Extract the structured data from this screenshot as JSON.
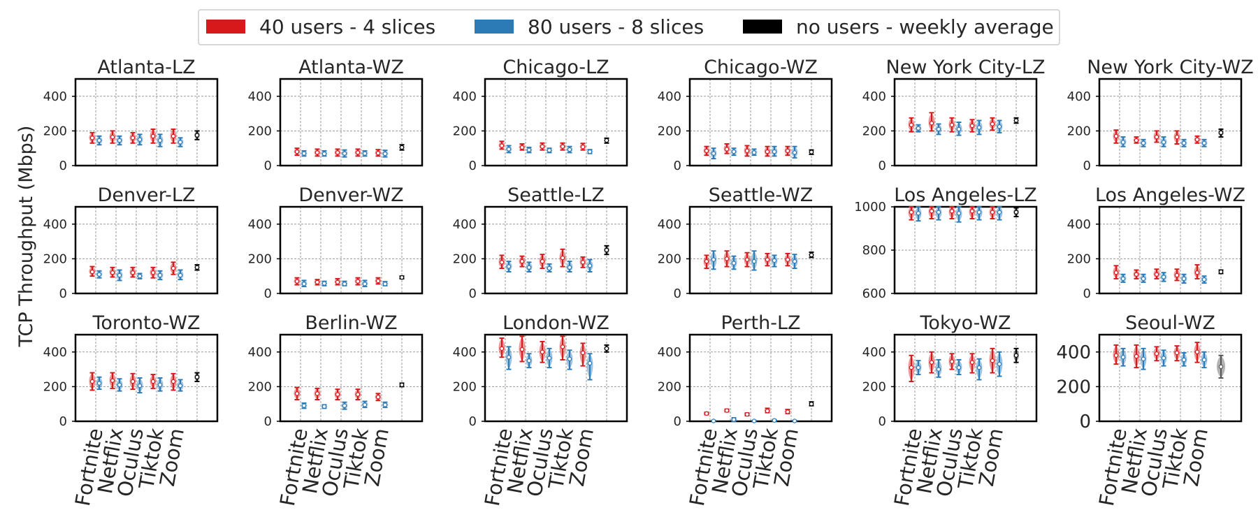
{
  "legend": [
    {
      "label": "40 users - 4 slices",
      "color": "#d7191c"
    },
    {
      "label": "80 users - 8 slices",
      "color": "#2c7bb6"
    },
    {
      "label": "no users - weekly average",
      "color": "#000000"
    }
  ],
  "ylabel": "TCP Throughput (Mbps)",
  "categories": [
    "Fortnite",
    "Netflix",
    "Oculus",
    "Tiktok",
    "Zoom"
  ],
  "chart_data": {
    "type": "violin",
    "ylabel": "TCP Throughput (Mbps)",
    "categories": [
      "Fortnite",
      "Netflix",
      "Oculus",
      "Tiktok",
      "Zoom"
    ],
    "series_names": [
      "40 users - 4 slices",
      "80 users - 8 slices",
      "no users - weekly average"
    ],
    "grid": true,
    "legend_position": "top",
    "panels": [
      {
        "title": "Atlanta-LZ",
        "ylim": [
          0,
          500
        ],
        "yticks": [
          0,
          200,
          400
        ],
        "s40": [
          [
            160,
            130,
            190
          ],
          [
            165,
            130,
            200
          ],
          [
            160,
            130,
            190
          ],
          [
            170,
            130,
            210
          ],
          [
            170,
            130,
            210
          ]
        ],
        "s80": [
          [
            145,
            120,
            170
          ],
          [
            145,
            120,
            170
          ],
          [
            150,
            120,
            180
          ],
          [
            145,
            110,
            180
          ],
          [
            135,
            110,
            160
          ]
        ],
        "avg": [
          175,
          150,
          200
        ]
      },
      {
        "title": "Atlanta-WZ",
        "ylim": [
          0,
          500
        ],
        "yticks": [
          0,
          200,
          400
        ],
        "s40": [
          [
            80,
            60,
            100
          ],
          [
            75,
            55,
            95
          ],
          [
            75,
            55,
            95
          ],
          [
            75,
            55,
            95
          ],
          [
            72,
            55,
            92
          ]
        ],
        "s80": [
          [
            70,
            55,
            85
          ],
          [
            68,
            55,
            85
          ],
          [
            70,
            50,
            90
          ],
          [
            70,
            55,
            85
          ],
          [
            68,
            50,
            88
          ]
        ],
        "avg": [
          105,
          90,
          120
        ]
      },
      {
        "title": "Chicago-LZ",
        "ylim": [
          0,
          500
        ],
        "yticks": [
          0,
          200,
          400
        ],
        "s40": [
          [
            115,
            95,
            140
          ],
          [
            105,
            90,
            125
          ],
          [
            110,
            90,
            130
          ],
          [
            110,
            90,
            130
          ],
          [
            108,
            90,
            128
          ]
        ],
        "s80": [
          [
            95,
            75,
            115
          ],
          [
            90,
            75,
            105
          ],
          [
            88,
            75,
            100
          ],
          [
            92,
            75,
            110
          ],
          [
            80,
            70,
            92
          ]
        ],
        "avg": [
          145,
          130,
          158
        ]
      },
      {
        "title": "Chicago-WZ",
        "ylim": [
          0,
          500
        ],
        "yticks": [
          0,
          200,
          400
        ],
        "s40": [
          [
            85,
            60,
            110
          ],
          [
            95,
            70,
            125
          ],
          [
            85,
            55,
            115
          ],
          [
            80,
            55,
            110
          ],
          [
            85,
            60,
            110
          ]
        ],
        "s80": [
          [
            70,
            40,
            100
          ],
          [
            80,
            60,
            100
          ],
          [
            75,
            60,
            95
          ],
          [
            80,
            55,
            110
          ],
          [
            75,
            45,
            110
          ]
        ],
        "avg": [
          78,
          65,
          90
        ]
      },
      {
        "title": "New York City-LZ",
        "ylim": [
          0,
          500
        ],
        "yticks": [
          0,
          200,
          400
        ],
        "s40": [
          [
            235,
            195,
            275
          ],
          [
            245,
            200,
            305
          ],
          [
            235,
            195,
            275
          ],
          [
            230,
            195,
            265
          ],
          [
            240,
            205,
            275
          ]
        ],
        "s80": [
          [
            215,
            195,
            235
          ],
          [
            210,
            180,
            240
          ],
          [
            210,
            175,
            250
          ],
          [
            220,
            180,
            260
          ],
          [
            225,
            190,
            260
          ]
        ],
        "avg": [
          260,
          245,
          275
        ]
      },
      {
        "title": "New York City-WZ",
        "ylim": [
          0,
          500
        ],
        "yticks": [
          0,
          200,
          400
        ],
        "s40": [
          [
            170,
            130,
            205
          ],
          [
            145,
            130,
            165
          ],
          [
            165,
            135,
            200
          ],
          [
            165,
            125,
            200
          ],
          [
            150,
            130,
            170
          ]
        ],
        "s80": [
          [
            135,
            110,
            165
          ],
          [
            130,
            110,
            150
          ],
          [
            135,
            110,
            165
          ],
          [
            130,
            110,
            150
          ],
          [
            130,
            110,
            150
          ]
        ],
        "avg": [
          190,
          165,
          210
        ]
      },
      {
        "title": "Denver-LZ",
        "ylim": [
          0,
          500
        ],
        "yticks": [
          0,
          200,
          400
        ],
        "s40": [
          [
            125,
            100,
            155
          ],
          [
            120,
            95,
            150
          ],
          [
            120,
            95,
            150
          ],
          [
            120,
            90,
            150
          ],
          [
            145,
            110,
            180
          ]
        ],
        "s80": [
          [
            110,
            90,
            130
          ],
          [
            105,
            75,
            135
          ],
          [
            100,
            85,
            115
          ],
          [
            105,
            80,
            130
          ],
          [
            105,
            80,
            135
          ]
        ],
        "avg": [
          150,
          135,
          165
        ]
      },
      {
        "title": "Denver-WZ",
        "ylim": [
          0,
          500
        ],
        "yticks": [
          0,
          200,
          400
        ],
        "s40": [
          [
            70,
            50,
            90
          ],
          [
            65,
            50,
            80
          ],
          [
            65,
            50,
            85
          ],
          [
            70,
            50,
            90
          ],
          [
            72,
            55,
            90
          ]
        ],
        "s80": [
          [
            55,
            40,
            75
          ],
          [
            58,
            45,
            70
          ],
          [
            55,
            45,
            70
          ],
          [
            55,
            40,
            75
          ],
          [
            55,
            45,
            68
          ]
        ],
        "avg": [
          92,
          85,
          100
        ]
      },
      {
        "title": "Seattle-LZ",
        "ylim": [
          0,
          500
        ],
        "yticks": [
          0,
          200,
          400
        ],
        "s40": [
          [
            180,
            145,
            220
          ],
          [
            185,
            155,
            215
          ],
          [
            185,
            145,
            225
          ],
          [
            205,
            155,
            255
          ],
          [
            180,
            150,
            210
          ]
        ],
        "s80": [
          [
            155,
            125,
            185
          ],
          [
            150,
            125,
            180
          ],
          [
            145,
            125,
            170
          ],
          [
            150,
            125,
            185
          ],
          [
            160,
            125,
            195
          ]
        ],
        "avg": [
          250,
          225,
          275
        ]
      },
      {
        "title": "Seattle-WZ",
        "ylim": [
          0,
          500
        ],
        "yticks": [
          0,
          200,
          400
        ],
        "s40": [
          [
            185,
            145,
            220
          ],
          [
            200,
            155,
            245
          ],
          [
            195,
            155,
            235
          ],
          [
            195,
            160,
            230
          ],
          [
            195,
            160,
            230
          ]
        ],
        "s80": [
          [
            195,
            140,
            245
          ],
          [
            175,
            140,
            215
          ],
          [
            185,
            135,
            245
          ],
          [
            190,
            155,
            220
          ],
          [
            185,
            145,
            225
          ]
        ],
        "avg": [
          222,
          208,
          238
        ]
      },
      {
        "title": "Los Angeles-LZ",
        "ylim": [
          600,
          1000
        ],
        "yticks": [
          600,
          800,
          1000
        ],
        "s40": [
          [
            975,
            940,
            1000
          ],
          [
            980,
            945,
            1000
          ],
          [
            980,
            945,
            1000
          ],
          [
            980,
            945,
            1000
          ],
          [
            975,
            945,
            1000
          ]
        ],
        "s80": [
          [
            970,
            935,
            1000
          ],
          [
            975,
            940,
            1000
          ],
          [
            970,
            930,
            1000
          ],
          [
            975,
            940,
            1000
          ],
          [
            975,
            940,
            1000
          ]
        ],
        "avg": [
          975,
          955,
          995
        ]
      },
      {
        "title": "Los Angeles-WZ",
        "ylim": [
          0,
          500
        ],
        "yticks": [
          0,
          200,
          400
        ],
        "s40": [
          [
            120,
            85,
            160
          ],
          [
            110,
            85,
            135
          ],
          [
            110,
            85,
            140
          ],
          [
            105,
            75,
            140
          ],
          [
            120,
            85,
            165
          ]
        ],
        "s80": [
          [
            85,
            65,
            110
          ],
          [
            85,
            65,
            110
          ],
          [
            95,
            70,
            120
          ],
          [
            85,
            60,
            110
          ],
          [
            80,
            60,
            100
          ]
        ],
        "avg": [
          125,
          115,
          135
        ]
      },
      {
        "title": "Toronto-WZ",
        "ylim": [
          0,
          500
        ],
        "yticks": [
          0,
          200,
          400
        ],
        "s40": [
          [
            230,
            180,
            280
          ],
          [
            235,
            190,
            280
          ],
          [
            230,
            185,
            275
          ],
          [
            230,
            190,
            270
          ],
          [
            230,
            180,
            275
          ]
        ],
        "s80": [
          [
            220,
            185,
            255
          ],
          [
            210,
            175,
            245
          ],
          [
            205,
            165,
            250
          ],
          [
            210,
            175,
            250
          ],
          [
            205,
            175,
            240
          ]
        ],
        "avg": [
          255,
          230,
          280
        ]
      },
      {
        "title": "Berlin-WZ",
        "ylim": [
          0,
          500
        ],
        "yticks": [
          0,
          200,
          400
        ],
        "s40": [
          [
            160,
            125,
            195
          ],
          [
            160,
            125,
            190
          ],
          [
            155,
            125,
            185
          ],
          [
            155,
            125,
            185
          ],
          [
            140,
            120,
            160
          ]
        ],
        "s80": [
          [
            90,
            75,
            105
          ],
          [
            85,
            75,
            95
          ],
          [
            90,
            70,
            110
          ],
          [
            95,
            80,
            115
          ],
          [
            95,
            80,
            110
          ]
        ],
        "avg": [
          210,
          200,
          220
        ]
      },
      {
        "title": "London-WZ",
        "ylim": [
          0,
          500
        ],
        "yticks": [
          0,
          200,
          400
        ],
        "s40": [
          [
            420,
            370,
            480
          ],
          [
            415,
            345,
            490
          ],
          [
            400,
            340,
            460
          ],
          [
            430,
            355,
            490
          ],
          [
            395,
            320,
            450
          ]
        ],
        "s80": [
          [
            370,
            300,
            430
          ],
          [
            350,
            310,
            390
          ],
          [
            365,
            310,
            420
          ],
          [
            360,
            300,
            410
          ],
          [
            335,
            240,
            390
          ]
        ],
        "avg": [
          420,
          400,
          440
        ]
      },
      {
        "title": "Perth-LZ",
        "ylim": [
          0,
          500
        ],
        "yticks": [
          0,
          200,
          400
        ],
        "s40": [
          [
            45,
            38,
            52
          ],
          [
            62,
            55,
            70
          ],
          [
            40,
            32,
            48
          ],
          [
            60,
            50,
            75
          ],
          [
            55,
            45,
            68
          ]
        ],
        "s80": [
          [
            2,
            0,
            5
          ],
          [
            10,
            0,
            20
          ],
          [
            2,
            0,
            5
          ],
          [
            5,
            0,
            10
          ],
          [
            2,
            0,
            5
          ]
        ],
        "avg": [
          100,
          90,
          112
        ]
      },
      {
        "title": "Tokyo-WZ",
        "ylim": [
          0,
          500
        ],
        "yticks": [
          0,
          200,
          400
        ],
        "s40": [
          [
            310,
            230,
            380
          ],
          [
            340,
            280,
            400
          ],
          [
            345,
            300,
            390
          ],
          [
            340,
            280,
            390
          ],
          [
            350,
            280,
            420
          ]
        ],
        "s80": [
          [
            310,
            270,
            350
          ],
          [
            300,
            255,
            355
          ],
          [
            310,
            270,
            355
          ],
          [
            310,
            240,
            360
          ],
          [
            330,
            260,
            400
          ]
        ],
        "avg": [
          380,
          340,
          420
        ]
      },
      {
        "title": "Seoul-WZ",
        "ylim": [
          0,
          500
        ],
        "yticks": [
          0,
          200,
          400
        ],
        "s40": [
          [
            380,
            330,
            440
          ],
          [
            375,
            310,
            440
          ],
          [
            390,
            350,
            430
          ],
          [
            395,
            350,
            435
          ],
          [
            400,
            340,
            455
          ]
        ],
        "s80": [
          [
            370,
            320,
            420
          ],
          [
            360,
            300,
            420
          ],
          [
            365,
            320,
            410
          ],
          [
            355,
            320,
            395
          ],
          [
            355,
            310,
            400
          ]
        ],
        "avg": [
          315,
          250,
          380
        ]
      }
    ]
  },
  "colors": {
    "s40": "#d7191c",
    "s80": "#2c7bb6",
    "avg": "#000000"
  }
}
